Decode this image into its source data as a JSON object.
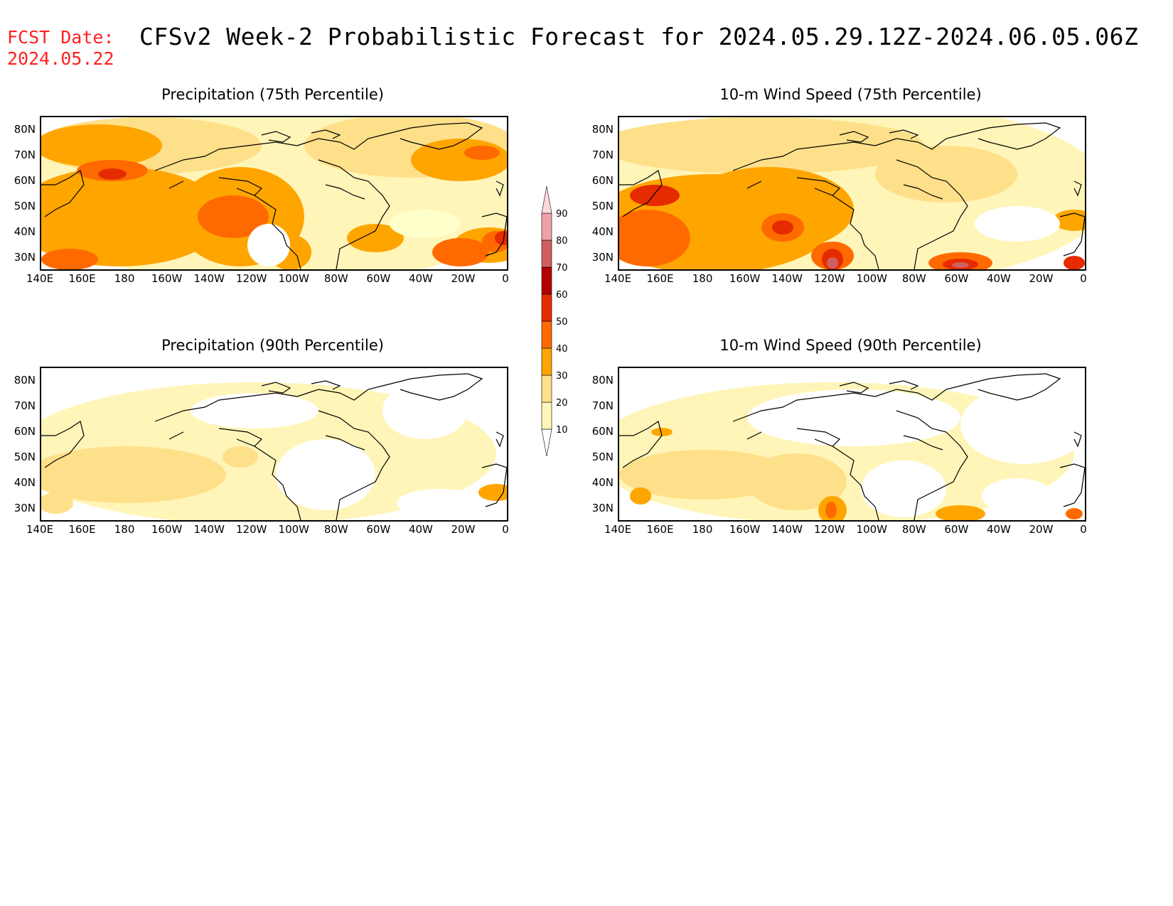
{
  "header": {
    "fcst_label_line1": "FCST Date:",
    "fcst_label_line2": "2024.05.22",
    "title": "CFSv2 Week-2 Probabilistic Forecast for 2024.05.29.12Z-2024.06.05.06Z"
  },
  "panels": [
    {
      "title": "Precipitation (75th Percentile)",
      "level": "high"
    },
    {
      "title": "10-m Wind Speed (75th Percentile)",
      "level": "high"
    },
    {
      "title": "Precipitation (90th Percentile)",
      "level": "low"
    },
    {
      "title": "10-m Wind Speed (90th Percentile)",
      "level": "low"
    }
  ],
  "axes": {
    "lat_labels": [
      "80N",
      "70N",
      "60N",
      "50N",
      "40N",
      "30N"
    ],
    "lon_labels": [
      "140E",
      "160E",
      "180",
      "160W",
      "140W",
      "120W",
      "100W",
      "80W",
      "60W",
      "40W",
      "20W",
      "0"
    ]
  },
  "colorbar": {
    "levels": [
      "10",
      "20",
      "30",
      "40",
      "50",
      "60",
      "70",
      "80",
      "90"
    ],
    "colors": [
      "#ffffff",
      "#fff5b8",
      "#ffe08a",
      "#ffa500",
      "#ff6a00",
      "#e62b00",
      "#b30000",
      "#d06060",
      "#f0a0a8",
      "#ffd8dc"
    ]
  }
}
